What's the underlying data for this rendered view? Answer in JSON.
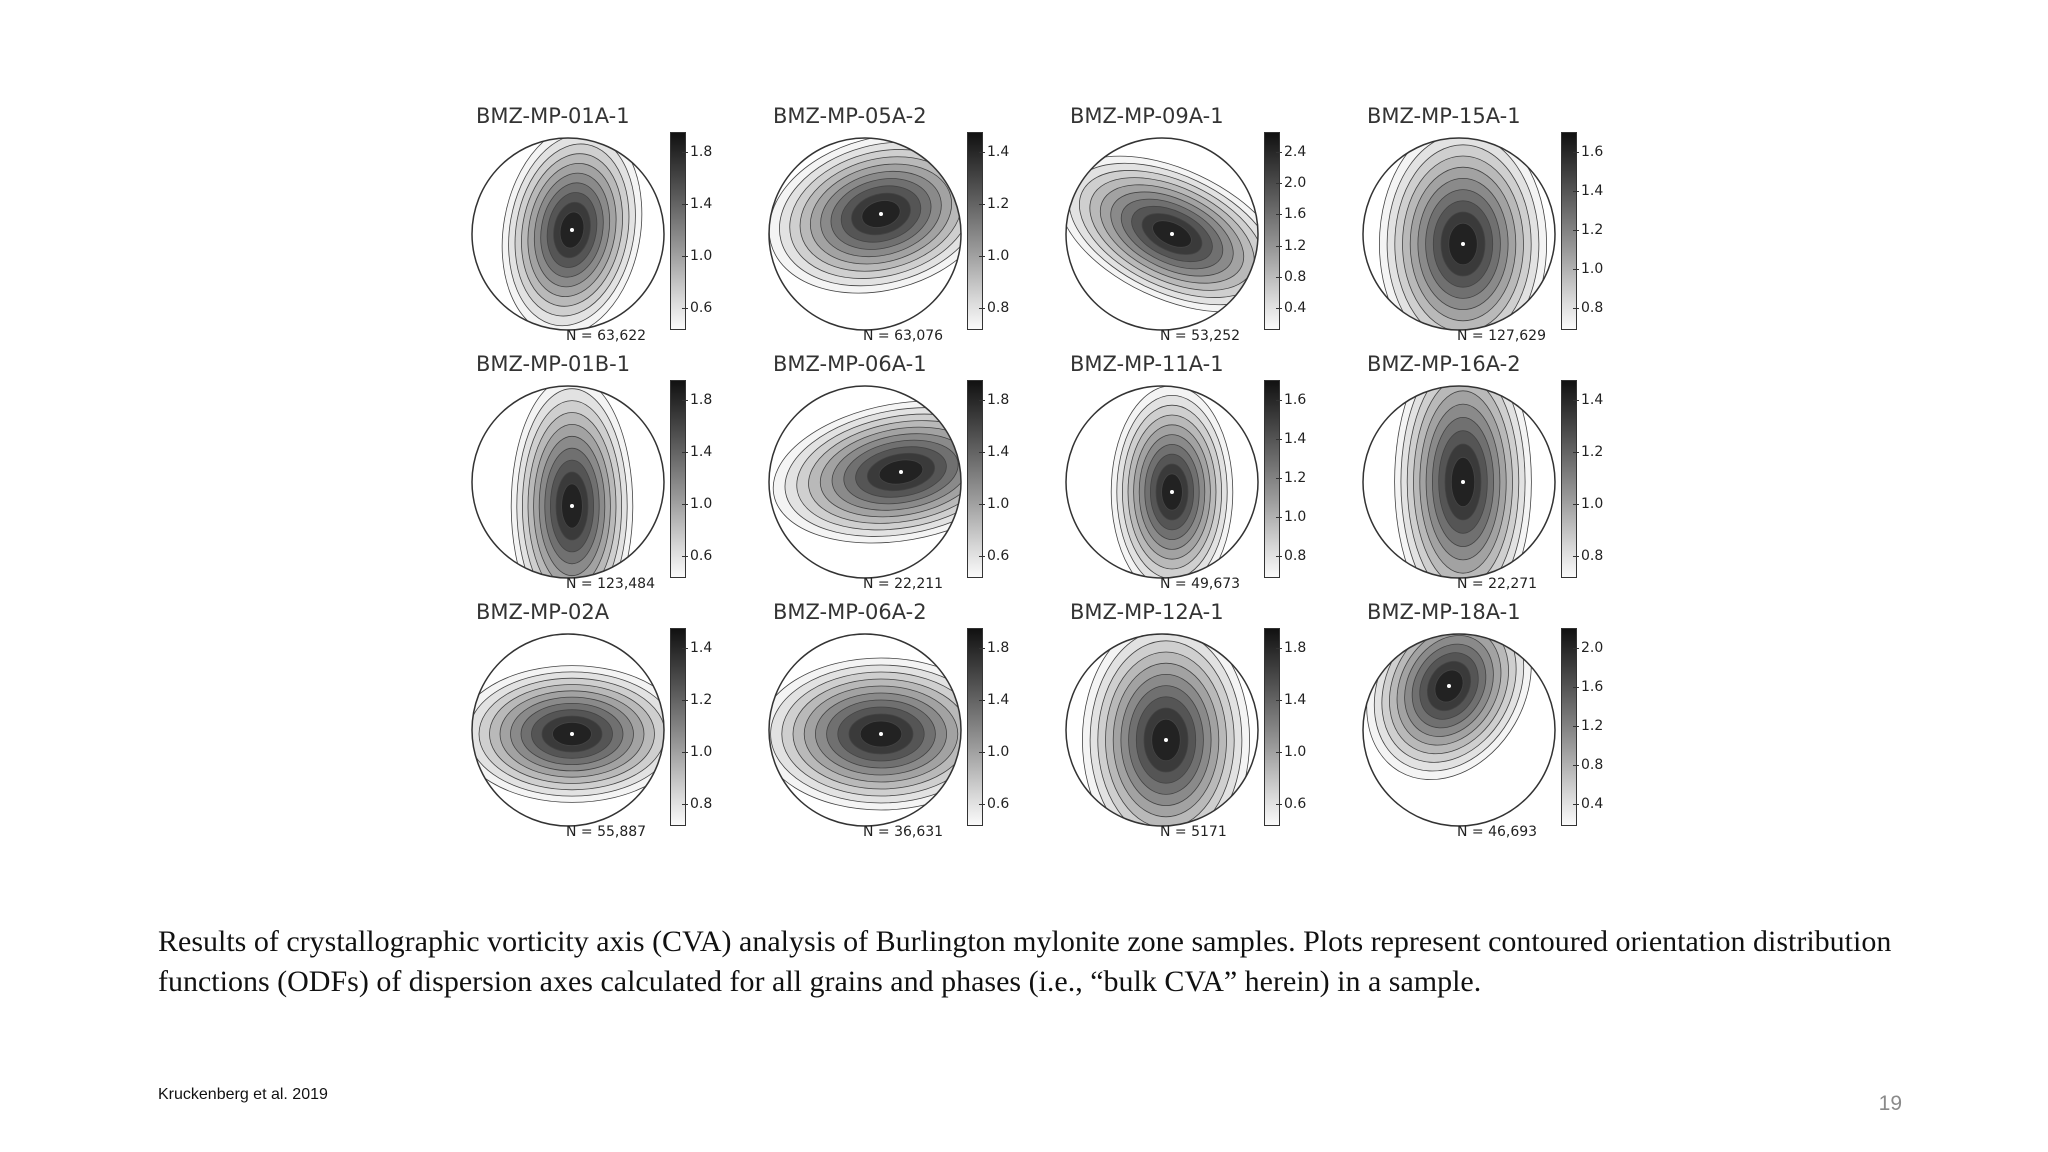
{
  "figure": {
    "panels": [
      {
        "title": "BMZ-MP-01A-1",
        "n": "N = 63,622",
        "ticks": [
          "1.8",
          "1.4",
          "1.0",
          "0.6"
        ],
        "peak": [
          0.52,
          0.48
        ],
        "spread": [
          0.18,
          0.28
        ],
        "angle": 10
      },
      {
        "title": "BMZ-MP-05A-2",
        "n": "N = 63,076",
        "ticks": [
          "1.4",
          "1.2",
          "1.0",
          "0.8"
        ],
        "peak": [
          0.58,
          0.4
        ],
        "spread": [
          0.3,
          0.2
        ],
        "angle": -15
      },
      {
        "title": "BMZ-MP-09A-1",
        "n": "N = 53,252",
        "ticks": [
          "2.4",
          "2.0",
          "1.6",
          "1.2",
          "0.8",
          "0.4"
        ],
        "peak": [
          0.55,
          0.5
        ],
        "spread": [
          0.32,
          0.17
        ],
        "angle": 25
      },
      {
        "title": "BMZ-MP-15A-1",
        "n": "N = 127,629",
        "ticks": [
          "1.6",
          "1.4",
          "1.2",
          "1.0",
          "0.8"
        ],
        "peak": [
          0.52,
          0.55
        ],
        "spread": [
          0.22,
          0.32
        ],
        "angle": 0
      },
      {
        "title": "BMZ-MP-01B-1",
        "n": "N = 123,484",
        "ticks": [
          "1.8",
          "1.4",
          "1.0",
          "0.6"
        ],
        "peak": [
          0.52,
          0.62
        ],
        "spread": [
          0.16,
          0.34
        ],
        "angle": 0
      },
      {
        "title": "BMZ-MP-06A-1",
        "n": "N = 22,211",
        "ticks": [
          "1.8",
          "1.4",
          "1.0",
          "0.6"
        ],
        "peak": [
          0.68,
          0.45
        ],
        "spread": [
          0.34,
          0.18
        ],
        "angle": -10
      },
      {
        "title": "BMZ-MP-11A-1",
        "n": "N = 49,673",
        "ticks": [
          "1.6",
          "1.4",
          "1.2",
          "1.0",
          "0.8"
        ],
        "peak": [
          0.55,
          0.55
        ],
        "spread": [
          0.16,
          0.28
        ],
        "angle": 0
      },
      {
        "title": "BMZ-MP-16A-2",
        "n": "N = 22,271",
        "ticks": [
          "1.4",
          "1.2",
          "1.0",
          "0.8"
        ],
        "peak": [
          0.52,
          0.5
        ],
        "spread": [
          0.18,
          0.38
        ],
        "angle": 0
      },
      {
        "title": "BMZ-MP-02A",
        "n": "N = 55,887",
        "ticks": [
          "1.4",
          "1.2",
          "1.0",
          "0.8"
        ],
        "peak": [
          0.52,
          0.52
        ],
        "spread": [
          0.3,
          0.18
        ],
        "angle": 0
      },
      {
        "title": "BMZ-MP-06A-2",
        "n": "N = 36,631",
        "ticks": [
          "1.8",
          "1.4",
          "1.0",
          "0.6"
        ],
        "peak": [
          0.58,
          0.52
        ],
        "spread": [
          0.32,
          0.2
        ],
        "angle": 0
      },
      {
        "title": "BMZ-MP-12A-1",
        "n": "N = 5171",
        "ticks": [
          "1.8",
          "1.4",
          "1.0",
          "0.6"
        ],
        "peak": [
          0.52,
          0.55
        ],
        "spread": [
          0.22,
          0.32
        ],
        "angle": 0
      },
      {
        "title": "BMZ-MP-18A-1",
        "n": "N = 46,693",
        "ticks": [
          "2.0",
          "1.6",
          "1.2",
          "0.8",
          "0.4"
        ],
        "peak": [
          0.45,
          0.28
        ],
        "spread": [
          0.2,
          0.26
        ],
        "angle": 30
      }
    ]
  },
  "caption": "Results of crystallographic vorticity axis (CVA) analysis of Burlington mylonite zone samples. Plots represent contoured orientation distribution functions (ODFs) of dispersion axes calculated for all grains and phases (i.e., “bulk CVA” herein) in a sample.",
  "citation": "Kruckenberg et al. 2019",
  "slide_number": "19"
}
